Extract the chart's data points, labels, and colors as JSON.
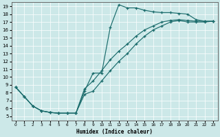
{
  "xlabel": "Humidex (Indice chaleur)",
  "bg_color": "#cce8e8",
  "line_color": "#1a6b6b",
  "grid_color": "#ffffff",
  "xlim": [
    -0.5,
    23.5
  ],
  "ylim": [
    4.5,
    19.5
  ],
  "xticks": [
    0,
    1,
    2,
    3,
    4,
    5,
    6,
    7,
    8,
    9,
    10,
    11,
    12,
    13,
    14,
    15,
    16,
    17,
    18,
    19,
    20,
    21,
    22,
    23
  ],
  "yticks": [
    5,
    6,
    7,
    8,
    9,
    10,
    11,
    12,
    13,
    14,
    15,
    16,
    17,
    18,
    19
  ],
  "curve1_x": [
    0,
    1,
    2,
    3,
    4,
    5,
    6,
    7,
    8,
    9,
    10,
    11,
    12,
    13,
    14,
    15,
    16,
    17,
    18,
    19,
    20,
    21,
    22,
    23
  ],
  "curve1_y": [
    8.7,
    7.5,
    6.3,
    5.7,
    5.5,
    5.4,
    5.4,
    5.4,
    8.2,
    10.5,
    10.5,
    16.3,
    19.2,
    18.8,
    18.8,
    18.5,
    18.3,
    18.2,
    18.2,
    18.1,
    18.0,
    17.3,
    17.1,
    17.1
  ],
  "curve2_x": [
    0,
    1,
    2,
    3,
    4,
    5,
    6,
    7,
    8,
    9,
    10,
    11,
    12,
    13,
    14,
    15,
    16,
    17,
    18,
    19,
    20,
    21,
    22,
    23
  ],
  "curve2_y": [
    8.7,
    7.5,
    6.3,
    5.7,
    5.5,
    5.4,
    5.4,
    5.4,
    7.8,
    8.2,
    9.5,
    10.8,
    12.0,
    13.0,
    14.2,
    15.2,
    16.0,
    16.5,
    17.0,
    17.2,
    17.0,
    17.0,
    17.0,
    17.1
  ],
  "curve3_x": [
    0,
    1,
    2,
    3,
    4,
    5,
    6,
    7,
    8,
    9,
    10,
    11,
    12,
    13,
    14,
    15,
    16,
    17,
    18,
    19,
    20,
    21,
    22,
    23
  ],
  "curve3_y": [
    8.7,
    7.5,
    6.3,
    5.7,
    5.5,
    5.4,
    5.4,
    5.4,
    8.5,
    9.5,
    10.8,
    12.2,
    13.3,
    14.2,
    15.2,
    16.0,
    16.5,
    17.0,
    17.2,
    17.3,
    17.2,
    17.1,
    17.1,
    17.1
  ]
}
